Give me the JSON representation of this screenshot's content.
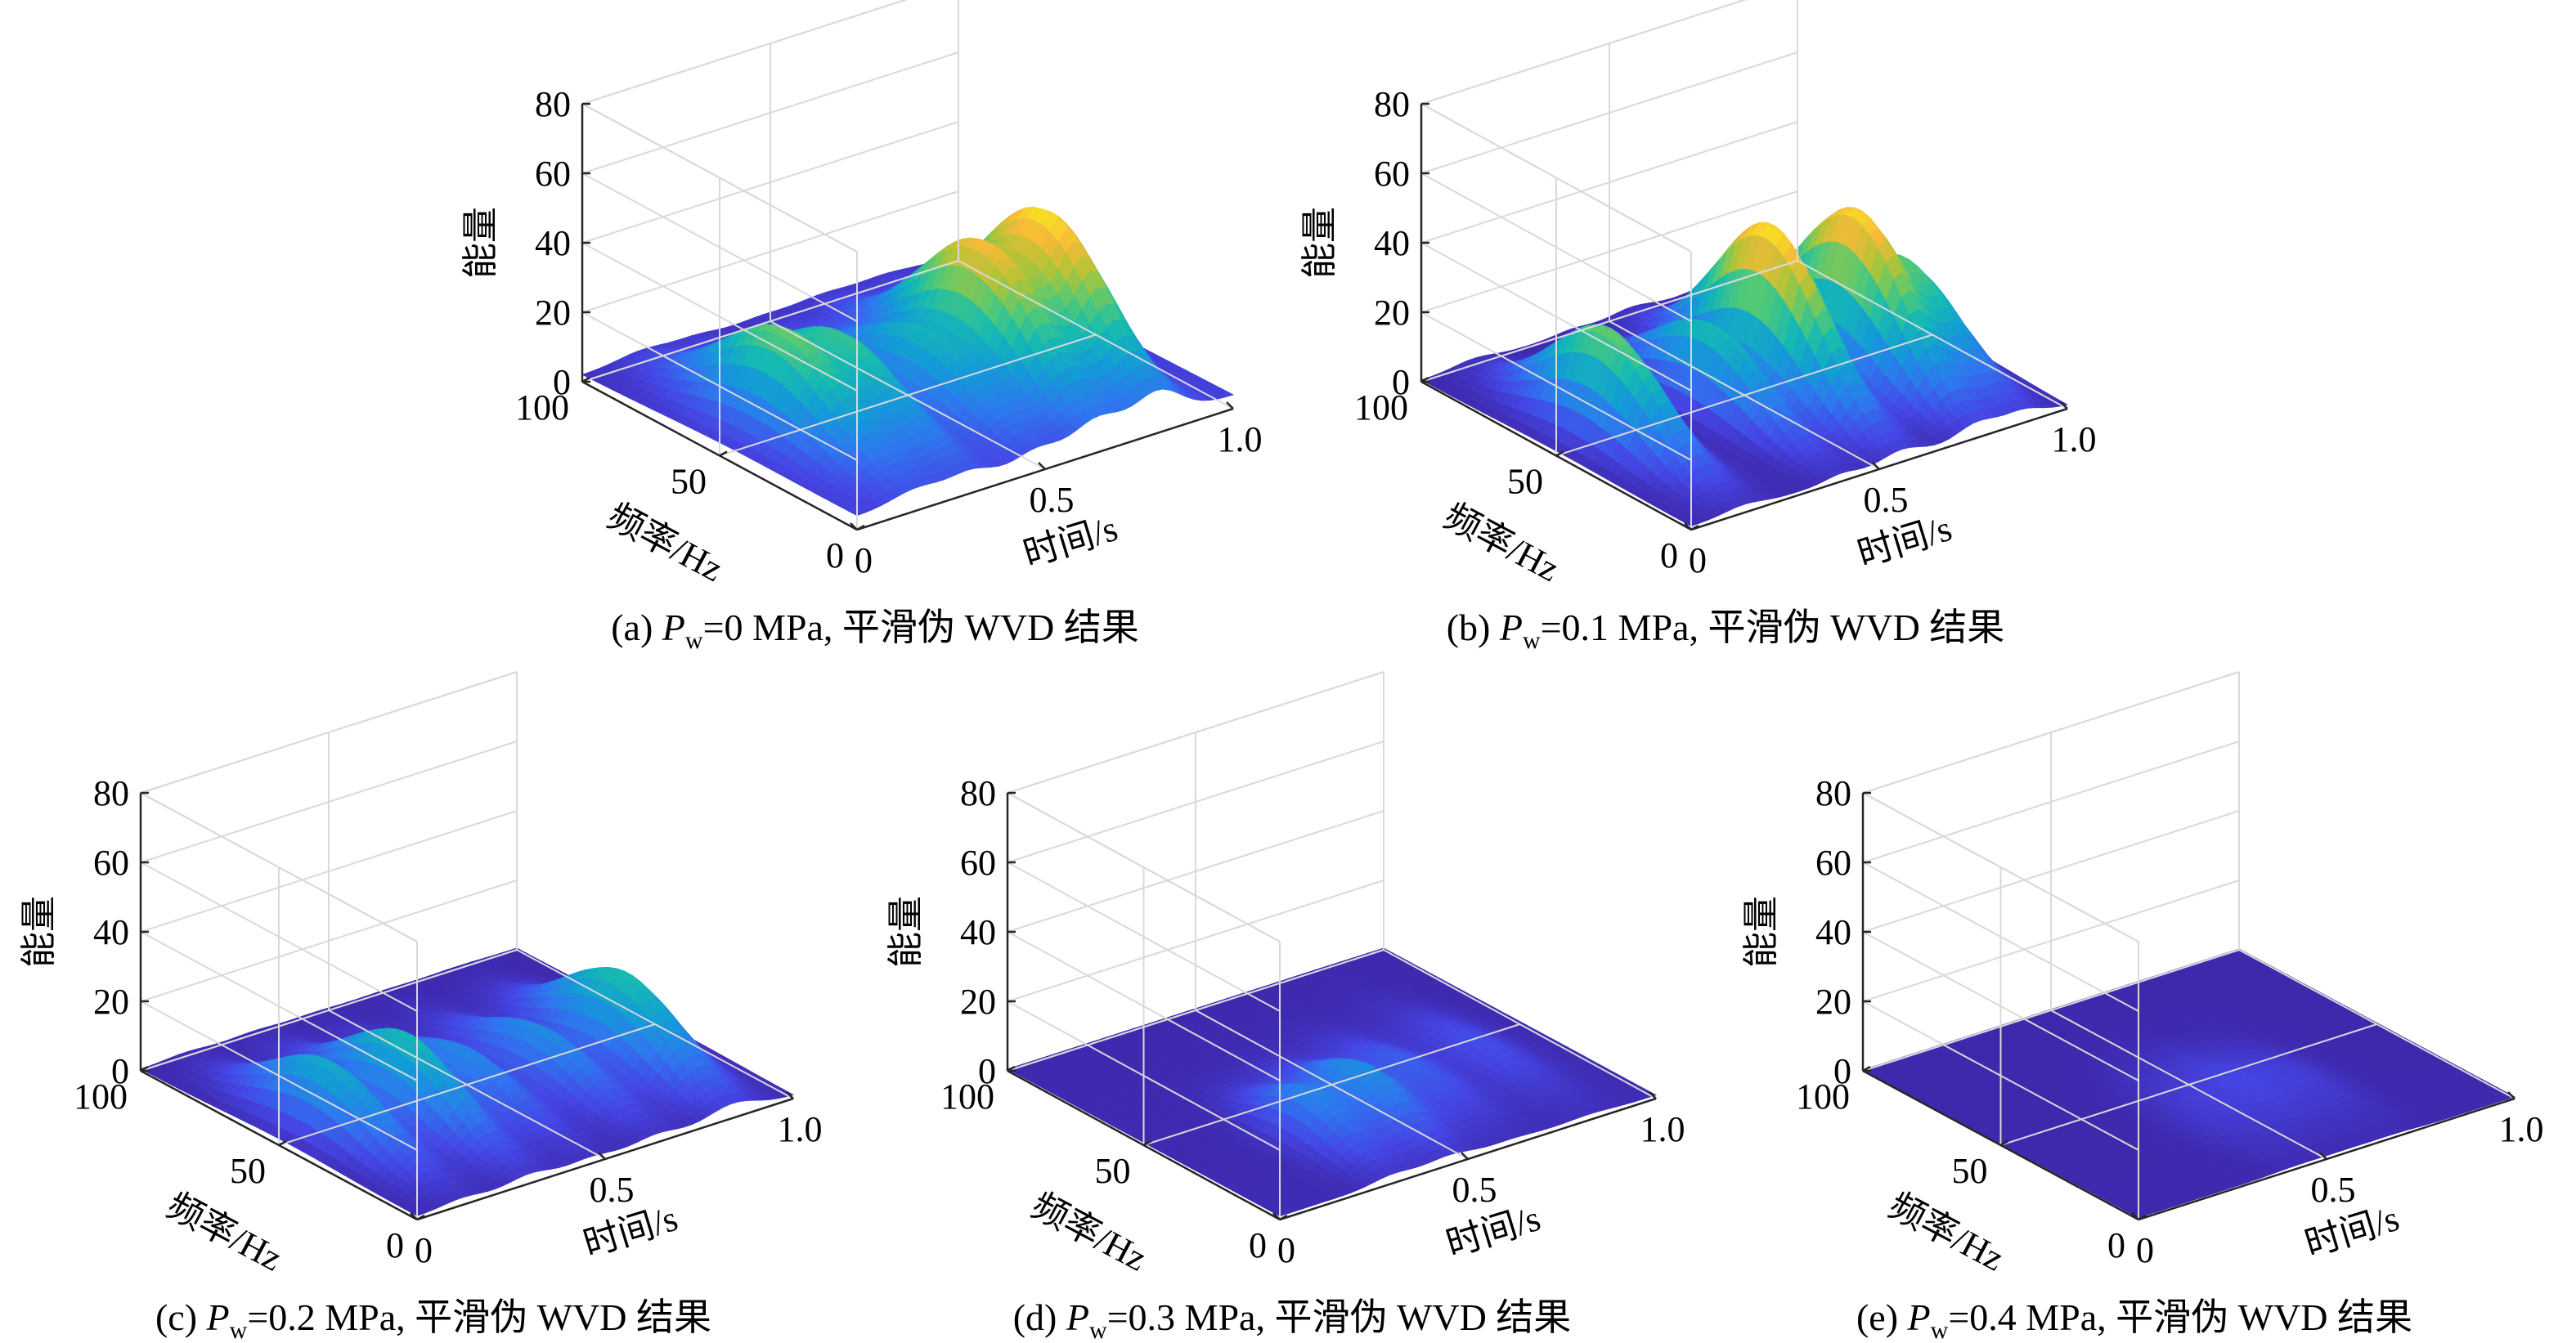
{
  "figure": {
    "panels": [
      {
        "id": "a",
        "caption": {
          "prefix": "(a) ",
          "var_main": "P",
          "var_sub": "w",
          "suffix": "=0 MPa, 平滑伪 WVD 结果"
        },
        "chart_data": {
          "type": "surface",
          "x": {
            "label": "时间/s",
            "ticks": [
              "0",
              "0.5",
              "1.0"
            ],
            "range": [
              0,
              1
            ]
          },
          "y": {
            "label": "频率/Hz",
            "ticks": [
              "0",
              "50",
              "100"
            ],
            "range": [
              0,
              100
            ]
          },
          "z": {
            "label": "能量",
            "ticks": [
              "0",
              "20",
              "40",
              "60",
              "80"
            ],
            "range": [
              0,
              80
            ]
          },
          "floor": 4,
          "peaks": [
            {
              "t": 0.16,
              "f": 48,
              "energy": 28,
              "wt": 0.06,
              "wf": 22
            },
            {
              "t": 0.3,
              "f": 45,
              "energy": 22,
              "wt": 0.05,
              "wf": 22
            },
            {
              "t": 0.48,
              "f": 42,
              "energy": 18,
              "wt": 0.05,
              "wf": 22
            },
            {
              "t": 0.64,
              "f": 42,
              "energy": 38,
              "wt": 0.06,
              "wf": 22
            },
            {
              "t": 0.8,
              "f": 40,
              "energy": 43,
              "wt": 0.06,
              "wf": 22
            }
          ]
        }
      },
      {
        "id": "b",
        "caption": {
          "prefix": "(b) ",
          "var_main": "P",
          "var_sub": "w",
          "suffix": "=0.1 MPa, 平滑伪 WVD 结果"
        },
        "chart_data": {
          "type": "surface",
          "x": {
            "label": "时间/s",
            "ticks": [
              "0",
              "0.5",
              "1.0"
            ],
            "range": [
              0,
              1
            ]
          },
          "y": {
            "label": "频率/Hz",
            "ticks": [
              "0",
              "50",
              "100"
            ],
            "range": [
              0,
              100
            ]
          },
          "z": {
            "label": "能量",
            "ticks": [
              "0",
              "20",
              "40",
              "60",
              "80"
            ],
            "range": [
              0,
              80
            ]
          },
          "floor": 1,
          "peaks": [
            {
              "t": 0.14,
              "f": 50,
              "energy": 31,
              "wt": 0.05,
              "wf": 20
            },
            {
              "t": 0.4,
              "f": 48,
              "energy": 24,
              "wt": 0.04,
              "wf": 20
            },
            {
              "t": 0.56,
              "f": 48,
              "energy": 47,
              "wt": 0.05,
              "wf": 20
            },
            {
              "t": 0.76,
              "f": 45,
              "energy": 44,
              "wt": 0.05,
              "wf": 20
            },
            {
              "t": 0.88,
              "f": 42,
              "energy": 26,
              "wt": 0.05,
              "wf": 20
            }
          ]
        }
      },
      {
        "id": "c",
        "caption": {
          "prefix": "(c) ",
          "var_main": "P",
          "var_sub": "w",
          "suffix": "=0.2 MPa, 平滑伪 WVD 结果"
        },
        "chart_data": {
          "type": "surface",
          "x": {
            "label": "时间/s",
            "ticks": [
              "0",
              "0.5",
              "1.0"
            ],
            "range": [
              0,
              1
            ]
          },
          "y": {
            "label": "频率/Hz",
            "ticks": [
              "0",
              "50",
              "100"
            ],
            "range": [
              0,
              100
            ]
          },
          "z": {
            "label": "能量",
            "ticks": [
              "0",
              "20",
              "40",
              "60",
              "80"
            ],
            "range": [
              0,
              80
            ]
          },
          "floor": 1,
          "peaks": [
            {
              "t": 0.12,
              "f": 48,
              "energy": 20,
              "wt": 0.05,
              "wf": 20
            },
            {
              "t": 0.3,
              "f": 45,
              "energy": 23,
              "wt": 0.05,
              "wf": 20
            },
            {
              "t": 0.46,
              "f": 45,
              "energy": 13,
              "wt": 0.05,
              "wf": 20
            },
            {
              "t": 0.64,
              "f": 42,
              "energy": 14,
              "wt": 0.05,
              "wf": 20
            },
            {
              "t": 0.84,
              "f": 40,
              "energy": 24,
              "wt": 0.06,
              "wf": 20
            }
          ]
        }
      },
      {
        "id": "d",
        "caption": {
          "prefix": "(d) ",
          "var_main": "P",
          "var_sub": "w",
          "suffix": "=0.3 MPa, 平滑伪 WVD 结果"
        },
        "chart_data": {
          "type": "surface",
          "x": {
            "label": "时间/s",
            "ticks": [
              "0",
              "0.5",
              "1.0"
            ],
            "range": [
              0,
              1
            ]
          },
          "y": {
            "label": "频率/Hz",
            "ticks": [
              "0",
              "50",
              "100"
            ],
            "range": [
              0,
              100
            ]
          },
          "z": {
            "label": "能量",
            "ticks": [
              "0",
              "20",
              "40",
              "60",
              "80"
            ],
            "range": [
              0,
              80
            ]
          },
          "floor": 1,
          "peaks": [
            {
              "t": 0.3,
              "f": 30,
              "energy": 12,
              "wt": 0.05,
              "wf": 15
            },
            {
              "t": 0.45,
              "f": 32,
              "energy": 14,
              "wt": 0.06,
              "wf": 16
            },
            {
              "t": 0.62,
              "f": 38,
              "energy": 7,
              "wt": 0.06,
              "wf": 18
            },
            {
              "t": 0.82,
              "f": 40,
              "energy": 5,
              "wt": 0.06,
              "wf": 20
            }
          ]
        }
      },
      {
        "id": "e",
        "caption": {
          "prefix": "(e) ",
          "var_main": "P",
          "var_sub": "w",
          "suffix": "=0.4 MPa, 平滑伪 WVD 结果"
        },
        "chart_data": {
          "type": "surface",
          "x": {
            "label": "时间/s",
            "ticks": [
              "0",
              "0.5",
              "1.0"
            ],
            "range": [
              0,
              1
            ]
          },
          "y": {
            "label": "频率/Hz",
            "ticks": [
              "0",
              "50",
              "100"
            ],
            "range": [
              0,
              100
            ]
          },
          "z": {
            "label": "能量",
            "ticks": [
              "0",
              "20",
              "40",
              "60",
              "80"
            ],
            "range": [
              0,
              80
            ]
          },
          "floor": 0.5,
          "peaks": [
            {
              "t": 0.42,
              "f": 35,
              "energy": 3,
              "wt": 0.06,
              "wf": 18
            },
            {
              "t": 0.55,
              "f": 38,
              "energy": 4,
              "wt": 0.06,
              "wf": 18
            },
            {
              "t": 0.68,
              "f": 35,
              "energy": 3,
              "wt": 0.06,
              "wf": 18
            }
          ]
        }
      }
    ]
  }
}
